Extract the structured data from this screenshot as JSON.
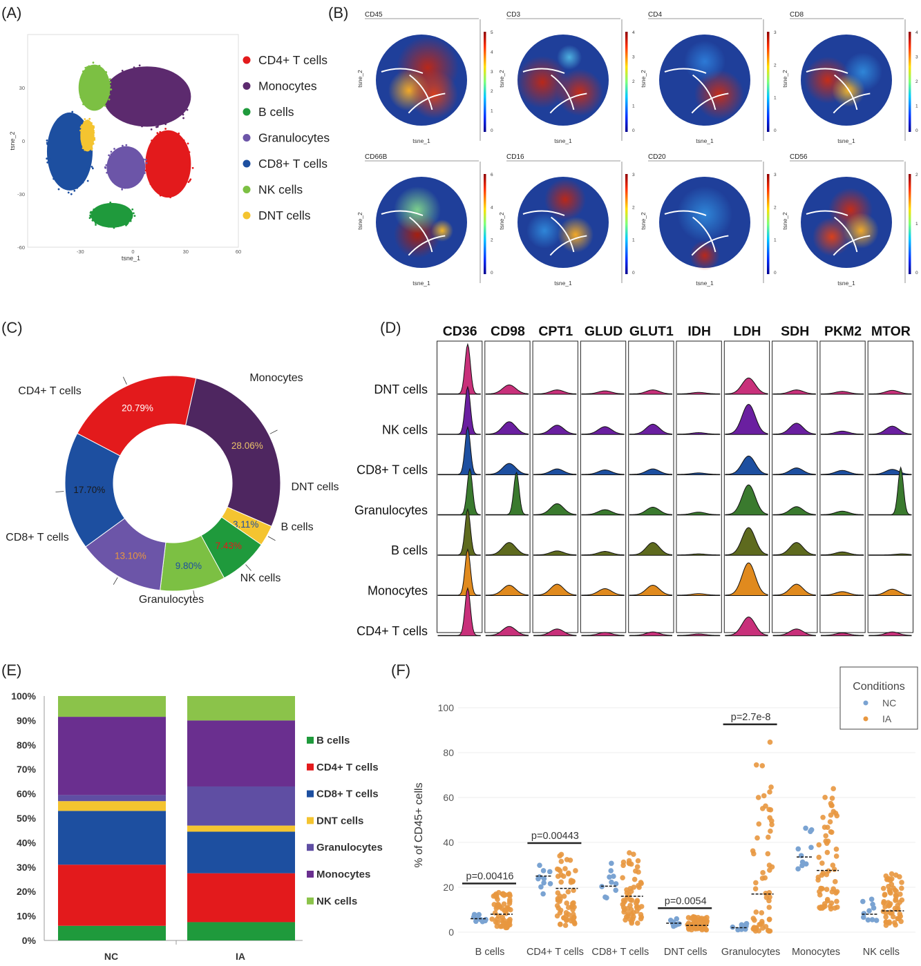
{
  "colors": {
    "cd4": "#e31a1c",
    "mono": "#5c2a6e",
    "b": "#1f9a3c",
    "gran": "#6c55a8",
    "cd8": "#1d4fa0",
    "nk": "#7cc043",
    "dnt": "#f4c430",
    "nc": "#7aa3d2",
    "ia": "#e8973f"
  },
  "panels": {
    "a": "(A)",
    "b": "(B)",
    "c": "(C)",
    "d": "(D)",
    "e": "(E)",
    "f": "(F)"
  },
  "chart_data": [
    {
      "id": "A",
      "type": "scatter",
      "xlabel": "tsne_1",
      "ylabel": "tsne_2",
      "xticks": [
        "-30",
        "0",
        "30",
        "60"
      ],
      "yticks": [
        "30",
        "0",
        "-30",
        "-60"
      ],
      "xlim": [
        -60,
        60
      ],
      "ylim": [
        -60,
        60
      ],
      "clusters": [
        {
          "name": "CD4+ T cells",
          "color": "#e31a1c",
          "cx": 20,
          "cy": -13,
          "rx": 13,
          "ry": 19
        },
        {
          "name": "Monocytes",
          "color": "#5c2a6e",
          "cx": 8,
          "cy": 25,
          "rx": 25,
          "ry": 17
        },
        {
          "name": "B cells",
          "color": "#1f9a3c",
          "cx": -12,
          "cy": -42,
          "rx": 12,
          "ry": 7
        },
        {
          "name": "Granulocytes",
          "color": "#6c55a8",
          "cx": -4,
          "cy": -15,
          "rx": 11,
          "ry": 12
        },
        {
          "name": "CD8+ T cells",
          "color": "#1d4fa0",
          "cx": -36,
          "cy": -6,
          "rx": 13,
          "ry": 22
        },
        {
          "name": "NK cells",
          "color": "#7cc043",
          "cx": -22,
          "cy": 30,
          "rx": 9,
          "ry": 13
        },
        {
          "name": "DNT cells",
          "color": "#f4c430",
          "cx": -26,
          "cy": 3,
          "rx": 4,
          "ry": 9
        }
      ],
      "legend": [
        "CD4+ T cells",
        "Monocytes",
        "B cells",
        "Granulocytes",
        "CD8+ T cells",
        "NK cells",
        "DNT cells"
      ]
    },
    {
      "id": "B",
      "type": "heatmap",
      "xlabel": "tsne_1",
      "ylabel": "tsne_2",
      "maps": [
        {
          "title": "CD45",
          "scale": [
            "5",
            "4",
            "3",
            "2",
            "1",
            "0"
          ]
        },
        {
          "title": "CD3",
          "scale": [
            "4",
            "3",
            "2",
            "1",
            "0"
          ]
        },
        {
          "title": "CD4",
          "scale": [
            "3",
            "2",
            "1",
            "0"
          ]
        },
        {
          "title": "CD8",
          "scale": [
            "4",
            "3",
            "2",
            "1",
            "0"
          ]
        },
        {
          "title": "CD66B",
          "scale": [
            "6",
            "4",
            "2",
            "0"
          ]
        },
        {
          "title": "CD16",
          "scale": [
            "3",
            "2",
            "1",
            "0"
          ]
        },
        {
          "title": "CD20",
          "scale": [
            "3",
            "2",
            "1",
            "0"
          ]
        },
        {
          "title": "CD56",
          "scale": [
            "2",
            "1",
            "0"
          ]
        }
      ]
    },
    {
      "id": "C",
      "type": "pie",
      "slices": [
        {
          "label": "Monocytes",
          "pct": "28.06%",
          "value": 28.06,
          "color": "#4e2660",
          "text": "#e9c16a"
        },
        {
          "label": "DNT cells",
          "pct": "3.11%",
          "value": 3.11,
          "color": "#f4c430",
          "text": "#1d4fa0"
        },
        {
          "label": "B cells",
          "pct": "7.43%",
          "value": 7.43,
          "color": "#1f9a3c",
          "text": "#e31a1c"
        },
        {
          "label": "NK cells",
          "pct": "9.80%",
          "value": 9.8,
          "color": "#7cc043",
          "text": "#1d4fa0"
        },
        {
          "label": "Granulocytes",
          "pct": "13.10%",
          "value": 13.1,
          "color": "#6c55a8",
          "text": "#e8973f"
        },
        {
          "label": "CD8+ T cells",
          "pct": "17.70%",
          "value": 17.7,
          "color": "#1d4fa0",
          "text": "#1a1a1a"
        },
        {
          "label": "CD4+ T cells",
          "pct": "20.79%",
          "value": 20.79,
          "color": "#e31a1c",
          "text": "#ffffff"
        }
      ]
    },
    {
      "id": "D",
      "type": "area",
      "columns": [
        "CD36",
        "CD98",
        "CPT1",
        "GLUD",
        "GLUT1",
        "IDH",
        "LDH",
        "SDH",
        "PKM2",
        "MTOR"
      ],
      "rows": [
        {
          "name": "DNT cells",
          "color": "#c8307a"
        },
        {
          "name": "NK cells",
          "color": "#6a1fa0"
        },
        {
          "name": "CD8+ T cells",
          "color": "#1d4fa0"
        },
        {
          "name": "Granulocytes",
          "color": "#3a7a2e"
        },
        {
          "name": "B cells",
          "color": "#5e6a1e"
        },
        {
          "name": "Monocytes",
          "color": "#e08a1e"
        },
        {
          "name": "CD4+ T cells",
          "color": "#c8307a"
        }
      ],
      "peak_heights": [
        [
          1.0,
          0.18,
          0.08,
          0.06,
          0.08,
          0.03,
          0.32,
          0.08,
          0.05,
          0.07
        ],
        [
          0.95,
          0.25,
          0.18,
          0.15,
          0.2,
          0.03,
          0.6,
          0.22,
          0.06,
          0.16
        ],
        [
          0.95,
          0.22,
          0.11,
          0.09,
          0.11,
          0.03,
          0.37,
          0.13,
          0.08,
          0.1
        ],
        [
          0.92,
          0.85,
          0.22,
          0.1,
          0.15,
          0.05,
          0.6,
          0.16,
          0.07,
          0.95
        ],
        [
          0.92,
          0.25,
          0.08,
          0.07,
          0.25,
          0.02,
          0.55,
          0.25,
          0.06,
          0.02
        ],
        [
          0.92,
          0.2,
          0.22,
          0.13,
          0.2,
          0.03,
          0.65,
          0.22,
          0.07,
          0.12
        ],
        [
          0.95,
          0.18,
          0.13,
          0.06,
          0.07,
          0.03,
          0.37,
          0.13,
          0.05,
          0.07
        ]
      ],
      "peak_pos": [
        0.7,
        0.55,
        0.55,
        0.55,
        0.55,
        0.5,
        0.55,
        0.55,
        0.5,
        0.55
      ],
      "special_peaks": {
        "3_0": 0.75,
        "3_1": 0.72,
        "3_9": 0.75,
        "4_9": 0.78
      }
    },
    {
      "id": "E",
      "type": "bar",
      "categories": [
        "NC",
        "IA"
      ],
      "yticks": [
        "0%",
        "10%",
        "20%",
        "30%",
        "40%",
        "50%",
        "60%",
        "70%",
        "80%",
        "90%",
        "100%"
      ],
      "ylim": [
        0,
        100
      ],
      "series": [
        {
          "name": "B cells",
          "color": "#1f9a3c",
          "values": [
            6,
            7.5
          ]
        },
        {
          "name": "CD4+ T cells",
          "color": "#e31a1c",
          "values": [
            25,
            20
          ]
        },
        {
          "name": "CD8+ T cells",
          "color": "#1d4fa0",
          "values": [
            22,
            17
          ]
        },
        {
          "name": "DNT cells",
          "color": "#f4c430",
          "values": [
            4,
            2.5
          ]
        },
        {
          "name": "Granulocytes",
          "color": "#5f4ea3",
          "values": [
            2.5,
            16
          ]
        },
        {
          "name": "Monocytes",
          "color": "#6a2f8f",
          "values": [
            32,
            27
          ]
        },
        {
          "name": "NK cells",
          "color": "#8bc34a",
          "values": [
            8.5,
            10
          ]
        }
      ]
    },
    {
      "id": "F",
      "type": "scatter",
      "ylabel": "% of CD45+ cells",
      "yticks": [
        "0",
        "20",
        "40",
        "60",
        "80",
        "100"
      ],
      "ylim": [
        0,
        100
      ],
      "legend_title": "Conditions",
      "legend": [
        {
          "name": "NC",
          "color": "#7aa3d2"
        },
        {
          "name": "IA",
          "color": "#e8973f"
        }
      ],
      "groups": [
        {
          "name": "B cells",
          "nc": [
            4.5,
            8
          ],
          "ia": [
            2,
            18
          ],
          "nc_med": 6,
          "ia_med": 8,
          "n_nc": 10,
          "n_ia": 60,
          "p": "p=0.00416"
        },
        {
          "name": "CD4+ T cells",
          "nc": [
            17,
            30
          ],
          "ia": [
            3,
            36
          ],
          "nc_med": 25,
          "ia_med": 19.5,
          "n_nc": 10,
          "n_ia": 60,
          "p": "p=0.00443"
        },
        {
          "name": "CD8+ T cells",
          "nc": [
            11,
            34
          ],
          "ia": [
            4,
            36
          ],
          "nc_med": 20.5,
          "ia_med": 16,
          "n_nc": 10,
          "n_ia": 60,
          "p": ""
        },
        {
          "name": "DNT cells",
          "nc": [
            2.5,
            6
          ],
          "ia": [
            1,
            7
          ],
          "nc_med": 4,
          "ia_med": 3,
          "n_nc": 10,
          "n_ia": 60,
          "p": "p=0.0054"
        },
        {
          "name": "Granulocytes",
          "nc": [
            1,
            4
          ],
          "ia": [
            0.5,
            88
          ],
          "nc_med": 2,
          "ia_med": 17,
          "n_nc": 10,
          "n_ia": 60,
          "p": "p=2.7e-8"
        },
        {
          "name": "Monocytes",
          "nc": [
            20,
            47
          ],
          "ia": [
            10,
            64
          ],
          "nc_med": 33.5,
          "ia_med": 27.5,
          "n_nc": 10,
          "n_ia": 60,
          "p": ""
        },
        {
          "name": "NK cells",
          "nc": [
            5,
            15
          ],
          "ia": [
            3,
            26
          ],
          "nc_med": 8,
          "ia_med": 9.5,
          "n_nc": 10,
          "n_ia": 60,
          "p": ""
        }
      ]
    }
  ]
}
